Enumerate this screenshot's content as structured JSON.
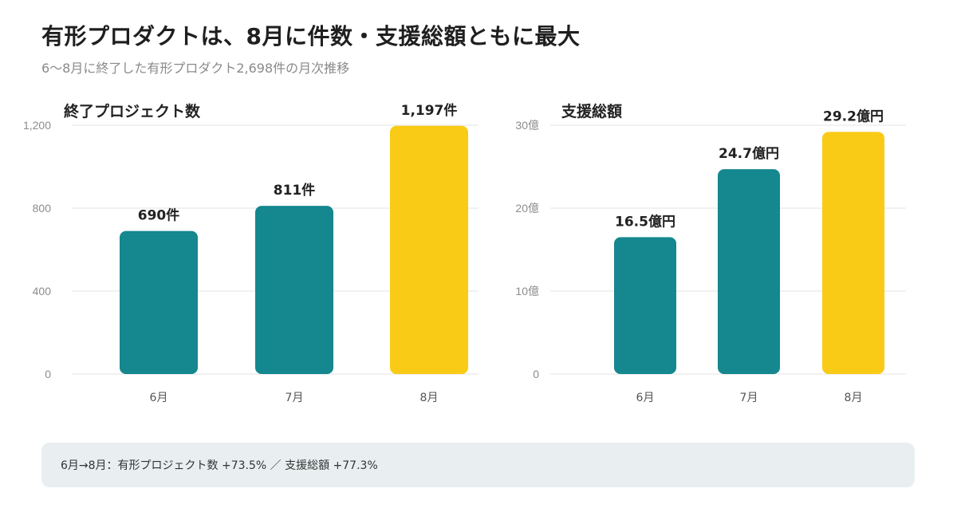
{
  "title": "有形プロダクトは、8月に件数・支援総額ともに最大",
  "subtitle": "6〜8月に終了した有形プロダクト2,698件の月次推移",
  "summary": "6月→8月：有形プロジェクト数 +73.5% ／ 支援総額 +77.3%",
  "colors": {
    "teal": "#14878f",
    "yellow": "#f9cb16",
    "grid": "#e3e3e3",
    "tick": "#8c8c8c",
    "label": "#222222"
  },
  "chart_data": [
    {
      "type": "bar",
      "title": "終了プロジェクト数",
      "categories": [
        "6月",
        "7月",
        "8月"
      ],
      "values": [
        690,
        811,
        1197
      ],
      "data_labels": [
        "690件",
        "811件",
        "1,197件"
      ],
      "ylim": [
        0,
        1200
      ],
      "yticks": [
        0,
        400,
        800,
        1200
      ],
      "ytick_labels": [
        "0",
        "400",
        "800",
        "1,200"
      ],
      "bar_colors": [
        "teal",
        "teal",
        "yellow"
      ],
      "grid": true
    },
    {
      "type": "bar",
      "title": "支援総額",
      "categories": [
        "6月",
        "7月",
        "8月"
      ],
      "values": [
        16.5,
        24.7,
        29.2
      ],
      "data_labels": [
        "16.5億円",
        "24.7億円",
        "29.2億円"
      ],
      "ylim": [
        0,
        30
      ],
      "yticks": [
        0,
        10,
        20,
        30
      ],
      "ytick_labels": [
        "0",
        "10億",
        "20億",
        "30億"
      ],
      "bar_colors": [
        "teal",
        "teal",
        "yellow"
      ],
      "grid": true
    }
  ]
}
